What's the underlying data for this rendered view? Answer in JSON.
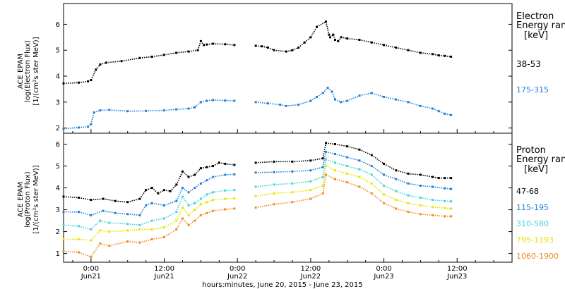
{
  "chart_data": [
    {
      "type": "scatter",
      "ylabel_lines": [
        "ACE EPAM",
        "log(Electron Flux)",
        "[1/(cm²s ster MeV)]"
      ],
      "ylim": [
        1.8,
        6.8
      ],
      "yticks": [
        2,
        3,
        4,
        5,
        6
      ],
      "legend_title": [
        "Electron",
        "Energy range",
        "[keV]"
      ],
      "series": [
        {
          "name": "38-53",
          "color": "#000000",
          "x": [
            -4.5,
            -2,
            -0.5,
            0,
            0.8,
            1.5,
            2.5,
            5,
            8,
            10,
            12,
            14,
            16,
            17.5,
            18,
            18.5,
            19,
            20,
            22,
            23.5,
            27,
            28,
            29,
            30,
            32,
            33,
            34,
            35,
            36,
            37,
            38.5,
            39,
            39.2,
            39.7,
            40,
            40.5,
            41,
            42,
            44,
            46,
            48,
            50,
            52,
            54,
            56,
            57,
            58,
            59
          ],
          "y": [
            3.72,
            3.75,
            3.8,
            3.85,
            4.25,
            4.45,
            4.52,
            4.58,
            4.7,
            4.75,
            4.82,
            4.9,
            4.95,
            5.0,
            5.35,
            5.2,
            5.22,
            5.25,
            5.23,
            5.2,
            5.17,
            5.15,
            5.1,
            5.0,
            4.95,
            5.0,
            5.1,
            5.3,
            5.5,
            5.9,
            6.1,
            5.6,
            5.5,
            5.6,
            5.4,
            5.35,
            5.5,
            5.45,
            5.4,
            5.3,
            5.2,
            5.1,
            5.0,
            4.9,
            4.85,
            4.8,
            4.78,
            4.75
          ]
        },
        {
          "name": "175-315",
          "color": "#1e7fd6",
          "x": [
            -4.5,
            -2,
            -0.5,
            0,
            0.5,
            1.5,
            3,
            6,
            9,
            12,
            14,
            16,
            17,
            18,
            19,
            20,
            22,
            23.5,
            27,
            29,
            31,
            32,
            34,
            36,
            37,
            38,
            38.8,
            39.5,
            40,
            41,
            42,
            44,
            46,
            48,
            50,
            52,
            54,
            56,
            57,
            58,
            59
          ],
          "y": [
            1.97,
            2.02,
            2.05,
            2.15,
            2.6,
            2.68,
            2.7,
            2.65,
            2.66,
            2.68,
            2.72,
            2.75,
            2.8,
            3.0,
            3.05,
            3.08,
            3.06,
            3.05,
            3.0,
            2.95,
            2.9,
            2.85,
            2.9,
            3.05,
            3.2,
            3.35,
            3.55,
            3.4,
            3.1,
            3.0,
            3.05,
            3.25,
            3.35,
            3.2,
            3.1,
            3.0,
            2.85,
            2.75,
            2.65,
            2.55,
            2.5
          ]
        }
      ]
    },
    {
      "type": "scatter",
      "ylabel_lines": [
        "ACE EPAM",
        "log(Proton Flux)",
        "[1/(cm²s ster MeV)]"
      ],
      "ylim": [
        0.6,
        6.5
      ],
      "yticks": [
        1,
        2,
        3,
        4,
        5,
        6
      ],
      "legend_title": [
        "Proton",
        "Energy range",
        "[keV]"
      ],
      "xlim": [
        -4.5,
        69
      ],
      "xticks": [
        0,
        12,
        24,
        36,
        48,
        60
      ],
      "xtick_labels": [
        [
          "0:00",
          "Jun21"
        ],
        [
          "12:00",
          "Jun21"
        ],
        [
          "0:00",
          "Jun22"
        ],
        [
          "12:00",
          "Jun22"
        ],
        [
          "0:00",
          "Jun23"
        ],
        [
          "12:00",
          "Jun23"
        ]
      ],
      "xlabel": "hours:minutes, June 20, 2015 - June 23, 2015",
      "series": [
        {
          "name": "47-68",
          "color": "#000000",
          "x": [
            -4.5,
            -2,
            0,
            2,
            4,
            6,
            8,
            9,
            10,
            11,
            12,
            13,
            14,
            15,
            16,
            17,
            18,
            19,
            20,
            21,
            22,
            23.5,
            27,
            30,
            33,
            36,
            38,
            38.5,
            40,
            42,
            44,
            46,
            48,
            50,
            52,
            54,
            56,
            57,
            58,
            59
          ],
          "y": [
            3.6,
            3.55,
            3.45,
            3.5,
            3.4,
            3.35,
            3.5,
            3.9,
            4.0,
            3.75,
            3.9,
            3.85,
            4.15,
            4.75,
            4.5,
            4.6,
            4.9,
            4.95,
            5.0,
            5.15,
            5.1,
            5.05,
            5.15,
            5.2,
            5.2,
            5.25,
            5.35,
            6.05,
            6.0,
            5.9,
            5.75,
            5.5,
            5.1,
            4.8,
            4.65,
            4.6,
            4.5,
            4.45,
            4.45,
            4.45
          ]
        },
        {
          "name": "115-195",
          "color": "#1e7fd6",
          "x": [
            -4.5,
            -2,
            0,
            2,
            4,
            6,
            8,
            9,
            10,
            12,
            14,
            15,
            16,
            17,
            18,
            19,
            20,
            22,
            23.5,
            27,
            30,
            33,
            36,
            38,
            38.5,
            40,
            42,
            44,
            46,
            48,
            50,
            52,
            54,
            56,
            58,
            59
          ],
          "y": [
            2.9,
            2.9,
            2.75,
            2.95,
            2.85,
            2.8,
            2.75,
            3.2,
            3.3,
            3.2,
            3.4,
            4.0,
            3.8,
            4.0,
            4.2,
            4.35,
            4.5,
            4.6,
            4.62,
            4.7,
            4.72,
            4.75,
            4.8,
            4.95,
            5.65,
            5.55,
            5.4,
            5.25,
            5.0,
            4.6,
            4.4,
            4.2,
            4.1,
            4.05,
            3.98,
            3.95
          ]
        },
        {
          "name": "310-580",
          "color": "#3fd6d6",
          "x": [
            -4.5,
            -2,
            0,
            1.5,
            3,
            6,
            8,
            10,
            12,
            14,
            15,
            16,
            17,
            18,
            19,
            20,
            22,
            23.5,
            27,
            30,
            33,
            36,
            38,
            38.5,
            40,
            42,
            44,
            46,
            48,
            50,
            52,
            54,
            56,
            58,
            59
          ],
          "y": [
            2.3,
            2.25,
            2.1,
            2.5,
            2.4,
            2.35,
            2.3,
            2.5,
            2.6,
            2.9,
            3.6,
            3.2,
            3.3,
            3.5,
            3.7,
            3.8,
            3.88,
            3.9,
            4.05,
            4.15,
            4.2,
            4.3,
            4.5,
            5.3,
            5.15,
            5.0,
            4.85,
            4.6,
            4.1,
            3.85,
            3.65,
            3.55,
            3.45,
            3.4,
            3.38
          ]
        },
        {
          "name": "795-1193",
          "color": "#e6e600",
          "x": [
            -4.5,
            -2,
            0,
            1.5,
            3,
            6,
            8,
            10,
            12,
            14,
            15,
            16,
            17,
            18,
            19,
            20,
            22,
            23.5,
            27,
            30,
            33,
            36,
            38,
            38.5,
            40,
            42,
            44,
            46,
            48,
            50,
            52,
            54,
            56,
            58,
            59
          ],
          "y": [
            1.65,
            1.65,
            1.6,
            2.05,
            2.0,
            2.05,
            2.1,
            2.1,
            2.2,
            2.5,
            3.1,
            2.75,
            3.0,
            3.25,
            3.35,
            3.45,
            3.5,
            3.52,
            3.62,
            3.75,
            3.8,
            3.9,
            4.1,
            5.0,
            4.8,
            4.65,
            4.5,
            4.2,
            3.7,
            3.45,
            3.3,
            3.2,
            3.12,
            3.08,
            3.05
          ]
        },
        {
          "name": "1060-1900",
          "color": "#f08a1e",
          "x": [
            -4.5,
            -2,
            0,
            1.5,
            3,
            6,
            8,
            10,
            12,
            14,
            15,
            16,
            17,
            18,
            19,
            20,
            22,
            23.5,
            27,
            30,
            33,
            36,
            38,
            38.5,
            40,
            42,
            44,
            46,
            48,
            50,
            52,
            54,
            56,
            58,
            59
          ],
          "y": [
            1.1,
            1.05,
            0.85,
            1.45,
            1.35,
            1.55,
            1.5,
            1.65,
            1.75,
            2.1,
            2.6,
            2.3,
            2.5,
            2.75,
            2.85,
            2.95,
            3.02,
            3.05,
            3.1,
            3.25,
            3.35,
            3.5,
            3.75,
            4.6,
            4.4,
            4.25,
            4.05,
            3.75,
            3.3,
            3.05,
            2.9,
            2.8,
            2.75,
            2.7,
            2.7
          ]
        }
      ]
    }
  ]
}
